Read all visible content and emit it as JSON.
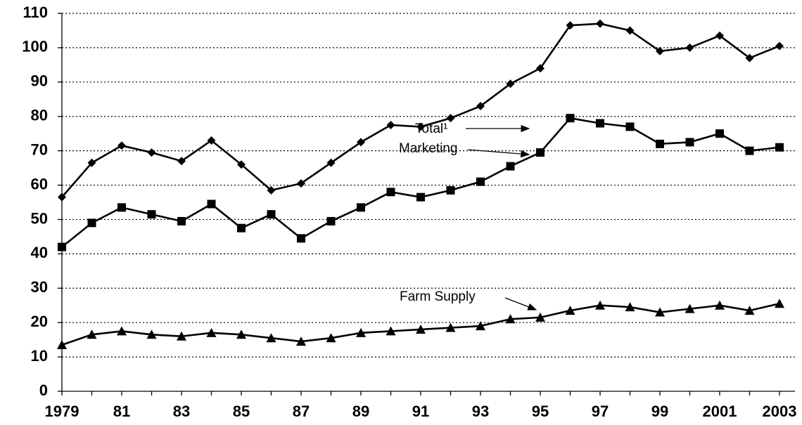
{
  "chart_data": {
    "type": "line",
    "categories": [
      "1979",
      null,
      "81",
      null,
      "83",
      null,
      "85",
      null,
      "87",
      null,
      "89",
      null,
      "91",
      null,
      "93",
      null,
      "95",
      null,
      "97",
      null,
      "99",
      null,
      "2001",
      null,
      "2003"
    ],
    "series": [
      {
        "name": "Total¹",
        "color": "#000000",
        "marker": "diamond",
        "values": [
          56.5,
          66.5,
          71.5,
          69.5,
          67,
          73,
          66,
          58.5,
          60.5,
          66.5,
          72.5,
          77.5,
          77,
          79.5,
          83,
          89.5,
          94,
          106.5,
          107,
          105,
          99,
          100,
          103.5,
          97,
          100.5
        ]
      },
      {
        "name": "Marketing",
        "color": "#000000",
        "marker": "square",
        "values": [
          42,
          49,
          53.5,
          51.5,
          49.5,
          54.5,
          47.5,
          51.5,
          44.5,
          49.5,
          53.5,
          58,
          56.5,
          58.5,
          61,
          65.5,
          69.5,
          79.5,
          78,
          77,
          72,
          72.5,
          75,
          70,
          71
        ]
      },
      {
        "name": "Farm Supply",
        "color": "#000000",
        "marker": "triangle",
        "values": [
          13.5,
          16.5,
          17.5,
          16.5,
          16,
          17,
          16.5,
          15.5,
          14.5,
          15.5,
          17,
          17.5,
          18,
          18.5,
          19,
          21,
          21.5,
          23.5,
          25,
          24.5,
          23,
          24,
          25,
          23.5,
          25.5
        ]
      }
    ],
    "ylim": [
      0,
      110
    ],
    "yticks": [
      0,
      10,
      20,
      30,
      40,
      50,
      60,
      70,
      80,
      90,
      100,
      110
    ],
    "grid": true
  }
}
